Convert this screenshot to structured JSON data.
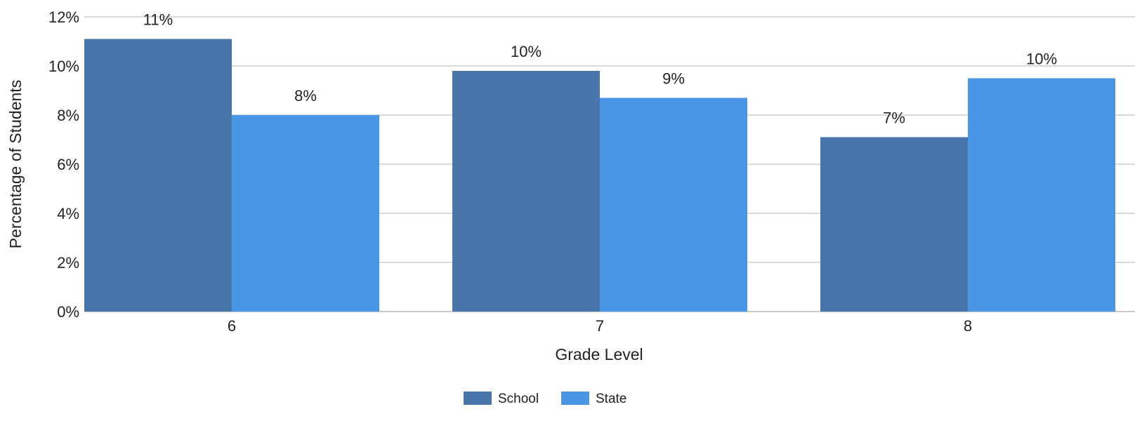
{
  "chart_data": {
    "type": "bar",
    "title": "",
    "xlabel": "Grade Level",
    "ylabel": "Percentage of Students",
    "categories": [
      "6",
      "7",
      "8"
    ],
    "series": [
      {
        "name": "School",
        "values": [
          11.1,
          9.8,
          7.1
        ],
        "labels": [
          "11%",
          "10%",
          "7%"
        ],
        "color": "#4876aa"
      },
      {
        "name": "State",
        "values": [
          8.0,
          8.7,
          9.5
        ],
        "labels": [
          "8%",
          "9%",
          "10%"
        ],
        "color": "#4a96e6"
      }
    ],
    "ylim": [
      0,
      12
    ],
    "yticks": [
      0,
      2,
      4,
      6,
      8,
      10,
      12
    ],
    "ytick_labels": [
      "0%",
      "2%",
      "4%",
      "6%",
      "8%",
      "10%",
      "12%"
    ],
    "grid": true,
    "legend_position": "bottom-center"
  }
}
